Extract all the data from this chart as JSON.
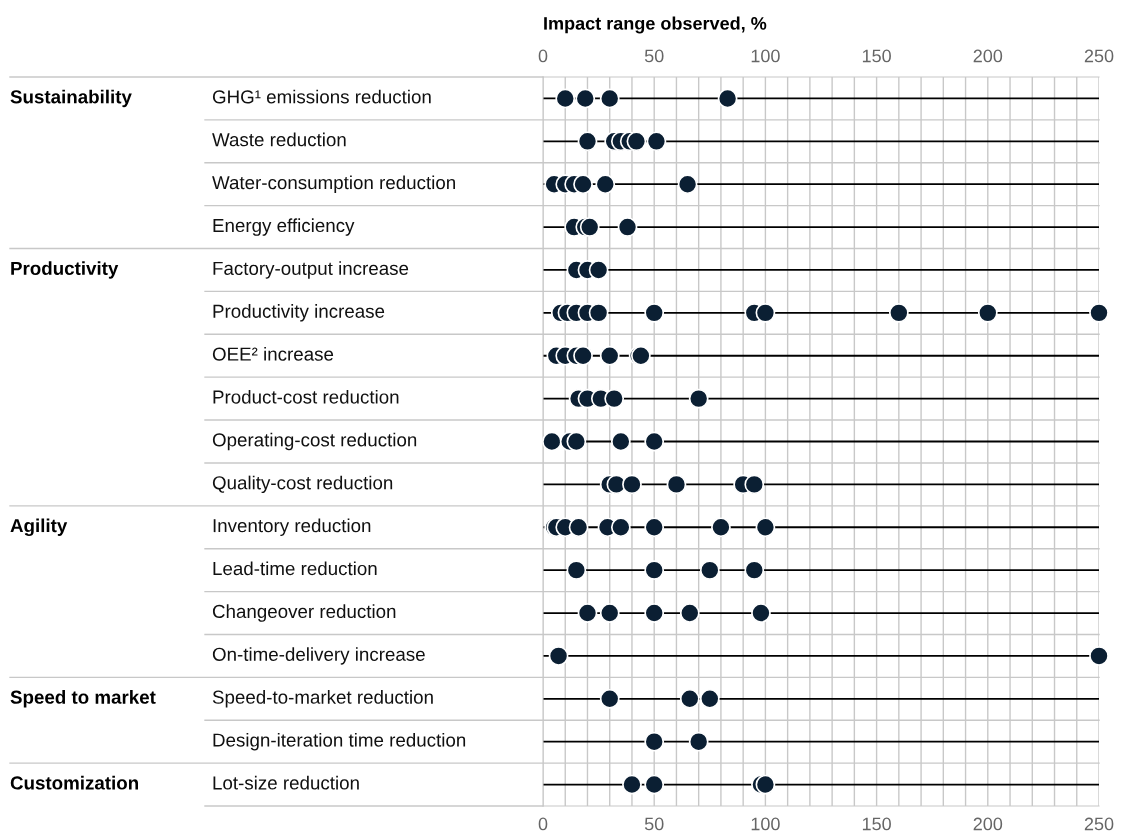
{
  "chart_data": {
    "type": "scatter",
    "orientation": "horizontal",
    "x2label": "Impact range observed, %",
    "categories": [
      "GHG¹ emissions reduction",
      "Waste reduction",
      "Water-consumption reduction",
      "Energy efficiency",
      "Factory-output increase",
      "Productivity increase",
      "OEE² increase",
      "Product-cost reduction",
      "Operating-cost reduction",
      "Quality-cost reduction",
      "Inventory reduction",
      "Lead-time reduction",
      "Changeover reduction",
      "On-time-delivery increase",
      "Speed-to-market reduction",
      "Design-iteration time reduction",
      "Lot-size reduction"
    ],
    "series": [
      {
        "color": "#0b1f33",
        "x": [
          "GHG¹ emissions reduction",
          "GHG¹ emissions reduction",
          "GHG¹ emissions reduction",
          "GHG¹ emissions reduction",
          "Waste reduction",
          "Waste reduction",
          "Waste reduction",
          "Waste reduction",
          "Waste reduction",
          "Waste reduction",
          "Water-consumption reduction",
          "Water-consumption reduction",
          "Water-consumption reduction",
          "Water-consumption reduction",
          "Water-consumption reduction",
          "Water-consumption reduction",
          "Energy efficiency",
          "Energy efficiency",
          "Energy efficiency",
          "Energy efficiency",
          "Factory-output increase",
          "Factory-output increase",
          "Factory-output increase",
          "Productivity increase",
          "Productivity increase",
          "Productivity increase",
          "Productivity increase",
          "Productivity increase",
          "Productivity increase",
          "Productivity increase",
          "Productivity increase",
          "Productivity increase",
          "Productivity increase",
          "Productivity increase",
          "OEE² increase",
          "OEE² increase",
          "OEE² increase",
          "OEE² increase",
          "OEE² increase",
          "OEE² increase",
          "OEE² increase",
          "Product-cost reduction",
          "Product-cost reduction",
          "Product-cost reduction",
          "Product-cost reduction",
          "Product-cost reduction",
          "Operating-cost reduction",
          "Operating-cost reduction",
          "Operating-cost reduction",
          "Operating-cost reduction",
          "Operating-cost reduction",
          "Quality-cost reduction",
          "Quality-cost reduction",
          "Quality-cost reduction",
          "Quality-cost reduction",
          "Quality-cost reduction",
          "Quality-cost reduction",
          "Inventory reduction",
          "Inventory reduction",
          "Inventory reduction",
          "Inventory reduction",
          "Inventory reduction",
          "Inventory reduction",
          "Inventory reduction",
          "Inventory reduction",
          "Inventory reduction",
          "Lead-time reduction",
          "Lead-time reduction",
          "Lead-time reduction",
          "Lead-time reduction",
          "Changeover reduction",
          "Changeover reduction",
          "Changeover reduction",
          "Changeover reduction",
          "Changeover reduction",
          "On-time-delivery increase",
          "On-time-delivery increase",
          "Speed-to-market reduction",
          "Speed-to-market reduction",
          "Speed-to-market reduction",
          "Design-iteration time reduction",
          "Design-iteration time reduction",
          "Lot-size reduction",
          "Lot-size reduction",
          "Lot-size reduction",
          "Lot-size reduction"
        ],
        "values": [
          10,
          19,
          30,
          83,
          20,
          32,
          35,
          39,
          42,
          51,
          5,
          10,
          14,
          18,
          28,
          65,
          14,
          19,
          21,
          38,
          15,
          20,
          25,
          8,
          11,
          15,
          20,
          25,
          50,
          95,
          100,
          160,
          200,
          250,
          6,
          10,
          15,
          18,
          30,
          43,
          44,
          16,
          20,
          26,
          32,
          70,
          4,
          12,
          15,
          35,
          50,
          30,
          33,
          40,
          60,
          90,
          95,
          5,
          6,
          10,
          16,
          29,
          35,
          50,
          80,
          100,
          15,
          50,
          75,
          95,
          20,
          30,
          50,
          66,
          98,
          7,
          250,
          30,
          66,
          75,
          50,
          70,
          40,
          50,
          98,
          100
        ]
      }
    ],
    "xlim": [
      0,
      250
    ],
    "xticks": [
      0,
      {
        "value": 10,
        "label": null
      },
      {
        "value": 20,
        "label": null
      },
      {
        "value": 30,
        "label": null
      },
      {
        "value": 40,
        "label": null
      },
      50,
      {
        "value": 60,
        "label": null
      },
      {
        "value": 70,
        "label": null
      },
      {
        "value": 80,
        "label": null
      },
      {
        "value": 90,
        "label": null
      },
      100,
      {
        "value": 110,
        "label": null
      },
      {
        "value": 120,
        "label": null
      },
      {
        "value": 130,
        "label": null
      },
      {
        "value": 140,
        "label": null
      },
      150,
      {
        "value": 160,
        "label": null
      },
      {
        "value": 170,
        "label": null
      },
      {
        "value": 180,
        "label": null
      },
      {
        "value": 190,
        "label": null
      },
      200,
      {
        "value": 210,
        "label": null
      },
      {
        "value": 220,
        "label": null
      },
      {
        "value": 230,
        "label": null
      },
      {
        "value": 240,
        "label": null
      },
      250
    ],
    "x2lim": [
      0,
      250
    ],
    "x2ticks": [
      0,
      50,
      100,
      150,
      200,
      250
    ],
    "annotations": [
      "Sustainability",
      "Productivity",
      "Agility",
      "Speed to market",
      "Customization"
    ],
    "grid": true,
    "marker": "circle",
    "legend": false
  }
}
